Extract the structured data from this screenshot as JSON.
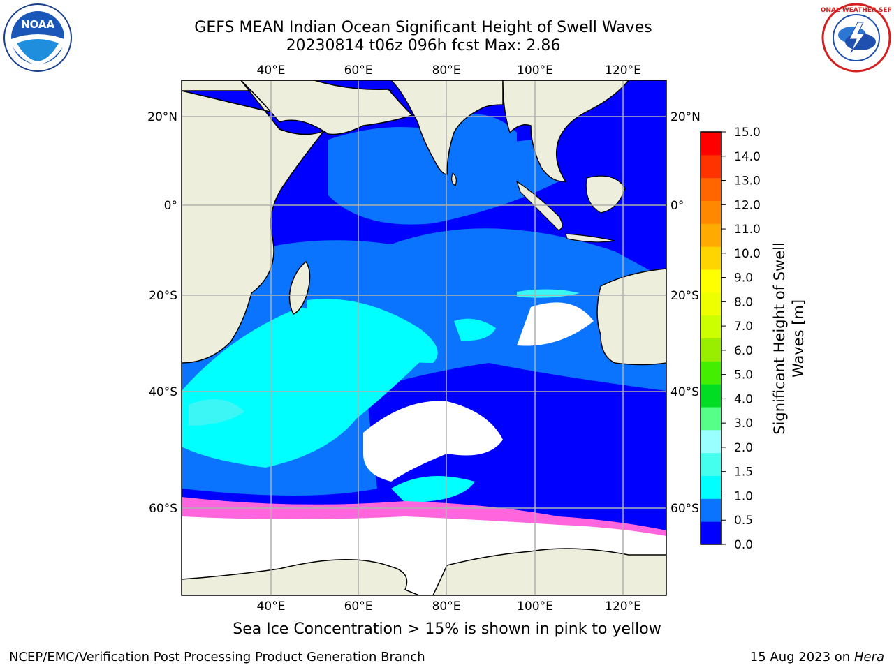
{
  "title_line1": "GEFS MEAN Indian Ocean Significant Height of Swell Waves",
  "title_line2": "20230814 t06z 096h fcst   Max: 2.86",
  "map": {
    "lon_labels": [
      "40°E",
      "60°E",
      "80°E",
      "100°E",
      "120°E"
    ],
    "lat_labels": [
      "20°N",
      "0°",
      "20°S",
      "40°S",
      "60°S"
    ],
    "colors": {
      "land": "#eeeedd",
      "ocean_deep": "#0000ff",
      "ocean_mid": "#0a74ff",
      "swell_cyan": "#00ffff",
      "swell_light": "#3cf5f5",
      "ice_white": "#ffffff",
      "ice_pink": "#ff66dd",
      "ice_orange": "#ffaa44",
      "grid": "#b0b0b0"
    }
  },
  "colorbar": {
    "title_line1": "Significant Height of Swell",
    "title_line2": "Waves [m]",
    "ticks": [
      "15.0",
      "14.0",
      "13.0",
      "12.0",
      "11.0",
      "10.0",
      "9.0",
      "8.0",
      "7.0",
      "6.0",
      "5.0",
      "4.0",
      "3.0",
      "2.0",
      "1.5",
      "1.0",
      "0.5",
      "0.0"
    ],
    "colors": [
      "#0000ff",
      "#0a74ff",
      "#00ffff",
      "#44ffee",
      "#99ffff",
      "#55ff88",
      "#00dd22",
      "#44ee00",
      "#99ee00",
      "#ccff00",
      "#eeff00",
      "#ffff00",
      "#ffd500",
      "#ffaa00",
      "#ff8800",
      "#ff6600",
      "#ff3300",
      "#ff0000"
    ]
  },
  "caption": "Sea Ice Concentration > 15% is shown in pink to yellow",
  "footer_left": "NCEP/EMC/Verification Post Processing Product Generation Branch",
  "footer_right_date": "15 Aug 2023 on",
  "footer_right_host": "Hera",
  "logos": {
    "left_text": "NOAA",
    "right_text": "NATIONAL WEATHER SERVICE"
  }
}
